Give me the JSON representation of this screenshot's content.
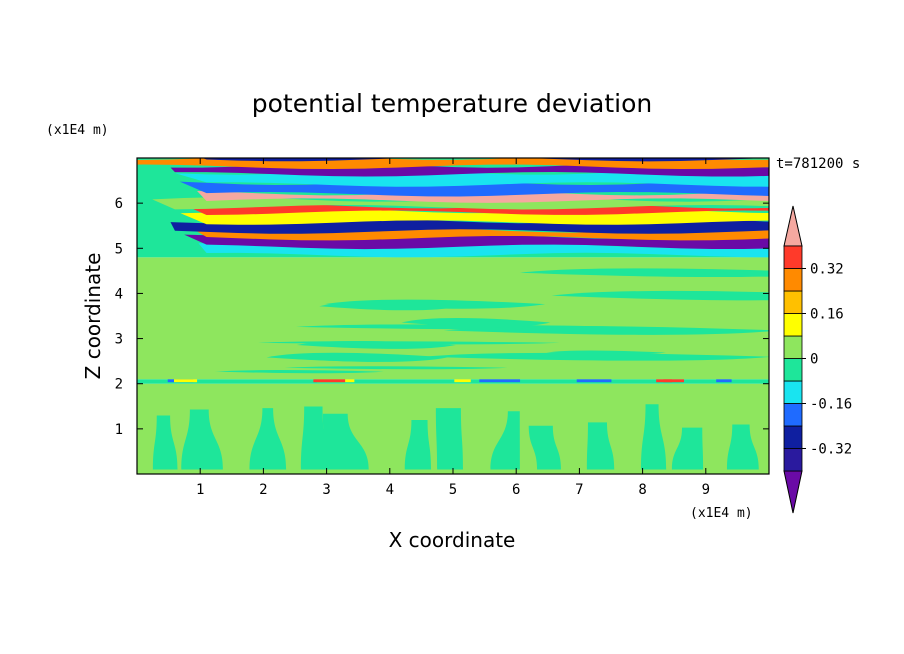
{
  "chart_data": {
    "type": "heatmap",
    "title": "potential temperature deviation",
    "xlabel": "X coordinate",
    "ylabel": "Z coordinate",
    "x_unit": "(x1E4 m)",
    "y_unit": "(x1E4 m)",
    "time_label": "t=781200 s",
    "xlim": [
      0,
      10
    ],
    "ylim": [
      0,
      7
    ],
    "x_ticks": [
      "1",
      "2",
      "3",
      "4",
      "5",
      "6",
      "7",
      "8",
      "9"
    ],
    "y_ticks": [
      "1",
      "2",
      "3",
      "4",
      "5",
      "6"
    ],
    "colorbar": {
      "ticks": [
        "0.32",
        "0.16",
        "0",
        "-0.16",
        "-0.32"
      ],
      "levels": [
        -0.48,
        -0.4,
        -0.32,
        -0.24,
        -0.16,
        -0.08,
        0,
        0.08,
        0.16,
        0.24,
        0.32,
        0.4,
        0.48
      ],
      "colors": [
        "#6a0aa6",
        "#2a1a9e",
        "#0f1fa0",
        "#1f6bff",
        "#19e4f0",
        "#1ee69a",
        "#8ee65e",
        "#ffff00",
        "#ffc000",
        "#ff8a00",
        "#ff3a2a",
        "#e62020",
        "#f5a8a0"
      ],
      "extend": "both"
    },
    "bands": [
      {
        "z_min": 0.0,
        "z_max": 2.0,
        "pattern": "vertical plumes",
        "colors": [
          "#1ee69a",
          "#8ee65e"
        ]
      },
      {
        "z_min": 2.0,
        "z_max": 2.1,
        "pattern": "thin layer",
        "colors": [
          "#1f6bff",
          "#ffff00",
          "#ff3a2a"
        ]
      },
      {
        "z_min": 2.1,
        "z_max": 4.8,
        "pattern": "horizontal stripes",
        "colors": [
          "#8ee65e",
          "#1ee69a"
        ]
      },
      {
        "z_min": 4.8,
        "z_max": 7.0,
        "pattern": "horizontal stripes",
        "colors": [
          "#6a0aa6",
          "#0f1fa0",
          "#19e4f0",
          "#ffff00",
          "#ff8a00",
          "#ff3a2a",
          "#f5a8a0"
        ]
      }
    ]
  }
}
